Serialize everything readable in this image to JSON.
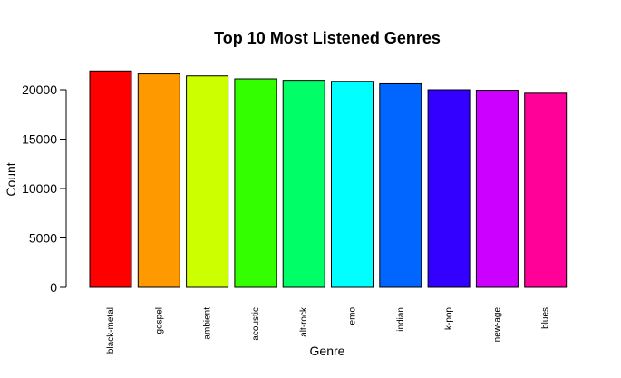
{
  "chart_data": {
    "type": "bar",
    "title": "Top 10 Most Listened Genres",
    "xlabel": "Genre",
    "ylabel": "Count",
    "ylim": [
      0,
      22000
    ],
    "yticks": [
      0,
      5000,
      10000,
      15000,
      20000
    ],
    "categories": [
      "black-metal",
      "gospel",
      "ambient",
      "acoustic",
      "alt-rock",
      "emo",
      "indian",
      "k-pop",
      "new-age",
      "blues"
    ],
    "values": [
      21900,
      21600,
      21400,
      21100,
      20950,
      20850,
      20600,
      20000,
      19950,
      19650
    ],
    "colors": [
      "#FF0000",
      "#FF9900",
      "#CCFF00",
      "#33FF00",
      "#00FF66",
      "#00FFFF",
      "#0066FF",
      "#3300FF",
      "#CC00FF",
      "#FF0099"
    ],
    "grid": false,
    "legend": "none"
  }
}
